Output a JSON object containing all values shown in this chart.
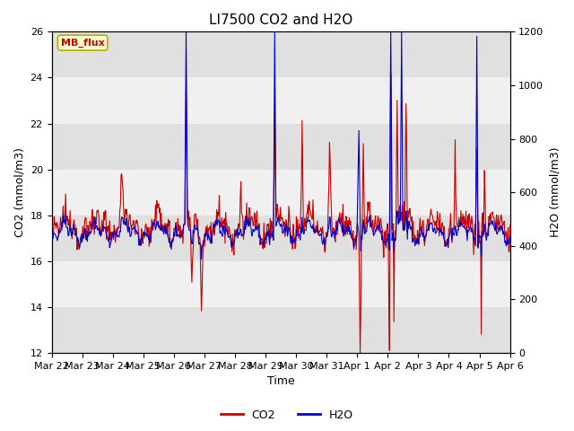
{
  "title": "LI7500 CO2 and H2O",
  "xlabel": "Time",
  "ylabel_left": "CO2 (mmol/m3)",
  "ylabel_right": "H2O (mmol/m3)",
  "ylim_left": [
    12,
    26
  ],
  "ylim_right": [
    0,
    1200
  ],
  "yticks_left": [
    12,
    14,
    16,
    18,
    20,
    22,
    24,
    26
  ],
  "yticks_right": [
    0,
    200,
    400,
    600,
    800,
    1000,
    1200
  ],
  "xticklabels": [
    "Mar 22",
    "Mar 23",
    "Mar 24",
    "Mar 25",
    "Mar 26",
    "Mar 27",
    "Mar 28",
    "Mar 29",
    "Mar 30",
    "Mar 31",
    "Apr 1",
    "Apr 2",
    "Apr 3",
    "Apr 4",
    "Apr 5",
    "Apr 6"
  ],
  "legend_labels": [
    "CO2",
    "H2O"
  ],
  "co2_color": "#cc0000",
  "h2o_color": "#0000cc",
  "annotation_text": "MB_flux",
  "annotation_bgcolor": "#ffffcc",
  "annotation_edgecolor": "#bbaa00",
  "annotation_textcolor": "#cc0000",
  "bg_color": "#ffffff",
  "plot_bg_color": "#ffffff",
  "band_light": "#f0f0f0",
  "band_dark": "#e0e0e0",
  "linewidth": 0.8,
  "title_fontsize": 11,
  "axis_label_fontsize": 9,
  "tick_fontsize": 8,
  "legend_fontsize": 9
}
